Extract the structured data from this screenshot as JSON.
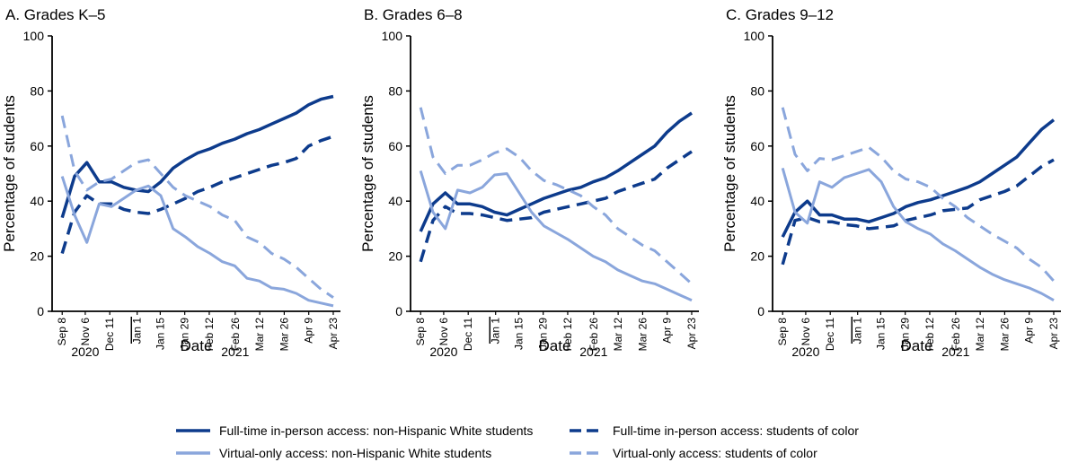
{
  "colors": {
    "full_time_white": "#0d3b8c",
    "full_time_color": "#0d3b8c",
    "virtual_white": "#8aa6dc",
    "virtual_color": "#8aa6dc",
    "axis": "#000000"
  },
  "legend": {
    "items": [
      {
        "label": "Full-time in-person access: non-Hispanic White students",
        "dashed": false,
        "color": "#0d3b8c"
      },
      {
        "label": "Full-time in-person access: students of color",
        "dashed": true,
        "color": "#0d3b8c"
      },
      {
        "label": "Virtual-only access: non-Hispanic White students",
        "dashed": false,
        "color": "#8aa6dc"
      },
      {
        "label": "Virtual-only access: students of color",
        "dashed": true,
        "color": "#8aa6dc"
      }
    ]
  },
  "chart_data": [
    {
      "type": "line",
      "title": "A. Grades K–5",
      "ylabel": "Percentage of students",
      "xlabel": "Date",
      "ylim": [
        0,
        100
      ],
      "yticks": [
        0,
        20,
        40,
        60,
        80,
        100
      ],
      "xticks": [
        "Sep 8",
        "Nov 6",
        "Dec 11",
        "Jan 1",
        "Jan 15",
        "Jan 29",
        "Feb 12",
        "Feb 26",
        "Mar 12",
        "Mar 26",
        "Apr 9",
        "Apr 23"
      ],
      "years": [
        "2020",
        "2021"
      ],
      "series": [
        {
          "name": "Full-time in-person access: non-Hispanic White students",
          "values": [
            34,
            49,
            54,
            47,
            47,
            45,
            44,
            43.5,
            47,
            52,
            55,
            57.5,
            59,
            61,
            62.5,
            64.5,
            66,
            68,
            70,
            72,
            75,
            77,
            78
          ]
        },
        {
          "name": "Full-time in-person access: students of color",
          "values": [
            21,
            36,
            42,
            39,
            39,
            37,
            36,
            35.5,
            37,
            39,
            41,
            43.5,
            45,
            47,
            48.5,
            50,
            51.5,
            53,
            54,
            55.5,
            60,
            62,
            63.5
          ]
        },
        {
          "name": "Virtual-only access: non-Hispanic White students",
          "values": [
            49,
            35,
            25,
            39,
            38,
            41,
            44,
            45.5,
            42,
            30,
            27,
            23.5,
            21,
            18,
            16.5,
            12,
            11,
            8.5,
            8,
            6.5,
            4,
            3,
            2
          ]
        },
        {
          "name": "Virtual-only access: students of color",
          "values": [
            71,
            51,
            44,
            47,
            48,
            51,
            54,
            55,
            50,
            45,
            42,
            40,
            38,
            35,
            33,
            27,
            25,
            21,
            19,
            16,
            12,
            8,
            5
          ]
        }
      ]
    },
    {
      "type": "line",
      "title": "B. Grades 6–8",
      "ylabel": "Percentage of students",
      "xlabel": "Date",
      "ylim": [
        0,
        100
      ],
      "yticks": [
        0,
        20,
        40,
        60,
        80,
        100
      ],
      "xticks": [
        "Sep 8",
        "Nov 6",
        "Dec 11",
        "Jan 1",
        "Jan 15",
        "Jan 29",
        "Feb 12",
        "Feb 26",
        "Mar 12",
        "Mar 26",
        "Apr 9",
        "Apr 23"
      ],
      "years": [
        "2020",
        "2021"
      ],
      "series": [
        {
          "name": "Full-time in-person access: non-Hispanic White students",
          "values": [
            29,
            39,
            43,
            39,
            39,
            38,
            36,
            35,
            37,
            39,
            41,
            42.5,
            44,
            45,
            47,
            48.5,
            51,
            54,
            57,
            60,
            65,
            69,
            72
          ]
        },
        {
          "name": "Full-time in-person access: students of color",
          "values": [
            18,
            33,
            38,
            35.5,
            35.5,
            35,
            34,
            33,
            33.5,
            34,
            36,
            37,
            38,
            39,
            40,
            41,
            43.5,
            45,
            46.5,
            48,
            52,
            55,
            58
          ]
        },
        {
          "name": "Virtual-only access: non-Hispanic White students",
          "values": [
            51,
            36,
            30,
            44,
            43,
            45,
            49.5,
            50,
            43,
            36,
            31,
            28.5,
            26,
            23,
            20,
            18,
            15,
            13,
            11,
            10,
            8,
            6,
            4
          ]
        },
        {
          "name": "Virtual-only access: students of color",
          "values": [
            74,
            56,
            50,
            53,
            53,
            55,
            57.5,
            59,
            56,
            51,
            47.5,
            46,
            44,
            42,
            38,
            35,
            30,
            27,
            24,
            22,
            18,
            14,
            10
          ]
        }
      ]
    },
    {
      "type": "line",
      "title": "C. Grades 9–12",
      "ylabel": "Percentage of students",
      "xlabel": "Date",
      "ylim": [
        0,
        100
      ],
      "yticks": [
        0,
        20,
        40,
        60,
        80,
        100
      ],
      "xticks": [
        "Sep 8",
        "Nov 6",
        "Dec 11",
        "Jan 1",
        "Jan 15",
        "Jan 29",
        "Feb 12",
        "Feb 26",
        "Mar 12",
        "Mar 26",
        "Apr 9",
        "Apr 23"
      ],
      "years": [
        "2020",
        "2021"
      ],
      "series": [
        {
          "name": "Full-time in-person access: non-Hispanic White students",
          "values": [
            27,
            36,
            40,
            35,
            35,
            33.5,
            33.5,
            32.5,
            34,
            35.5,
            38,
            39.5,
            40.5,
            42,
            43.5,
            45,
            47,
            50,
            53,
            56,
            61,
            66,
            69.5
          ]
        },
        {
          "name": "Full-time in-person access: students of color",
          "values": [
            17,
            33,
            34,
            32.5,
            32.5,
            31.5,
            31,
            30,
            30.5,
            31,
            33,
            34,
            35,
            36.5,
            37,
            37.5,
            40.5,
            42,
            43.5,
            45.5,
            49,
            52.5,
            55
          ]
        },
        {
          "name": "Virtual-only access: non-Hispanic White students",
          "values": [
            52,
            36,
            32,
            47,
            45,
            48.5,
            50,
            51.5,
            47,
            38,
            32.5,
            30,
            28,
            24.5,
            22,
            19,
            16,
            13.5,
            11.5,
            10,
            8.5,
            6.5,
            4
          ]
        },
        {
          "name": "Virtual-only access: students of color",
          "values": [
            74,
            57,
            51,
            55.5,
            55,
            56.5,
            58,
            59.5,
            56,
            51,
            48,
            47,
            45,
            41,
            38,
            34,
            31,
            28,
            25.5,
            23,
            19,
            16,
            11
          ]
        }
      ]
    }
  ]
}
